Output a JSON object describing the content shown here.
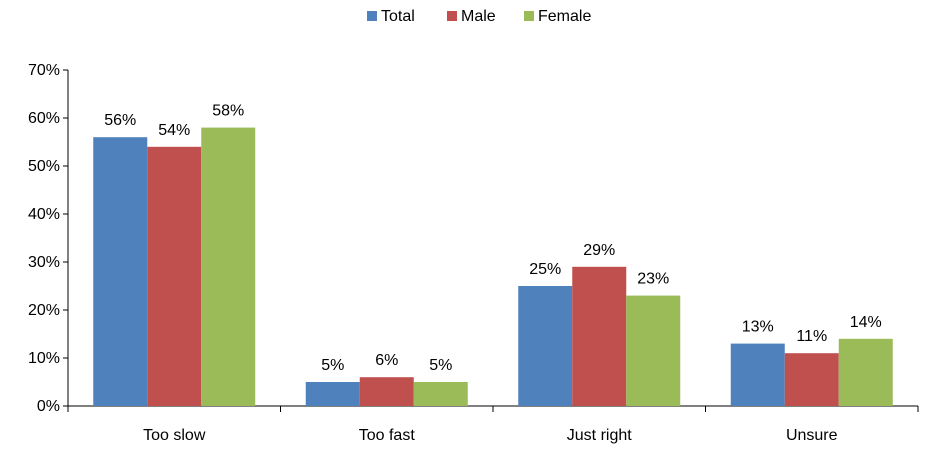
{
  "chart_data": {
    "type": "bar",
    "categories": [
      "Too slow",
      "Too fast",
      "Just right",
      "Unsure"
    ],
    "series": [
      {
        "name": "Total",
        "color": "#4F81BD",
        "values": [
          56,
          5,
          25,
          13
        ]
      },
      {
        "name": "Male",
        "color": "#C0504D",
        "values": [
          54,
          6,
          29,
          11
        ]
      },
      {
        "name": "Female",
        "color": "#9BBB59",
        "values": [
          58,
          5,
          23,
          14
        ]
      }
    ],
    "data_labels": [
      [
        "56%",
        "5%",
        "25%",
        "13%"
      ],
      [
        "54%",
        "6%",
        "29%",
        "11%"
      ],
      [
        "58%",
        "5%",
        "23%",
        "14%"
      ]
    ],
    "ylim": [
      0,
      70
    ],
    "yticks": [
      0,
      10,
      20,
      30,
      40,
      50,
      60,
      70
    ],
    "ytick_labels": [
      "0%",
      "10%",
      "20%",
      "30%",
      "40%",
      "50%",
      "60%",
      "70%"
    ],
    "legend_position": "top",
    "grid": false
  }
}
